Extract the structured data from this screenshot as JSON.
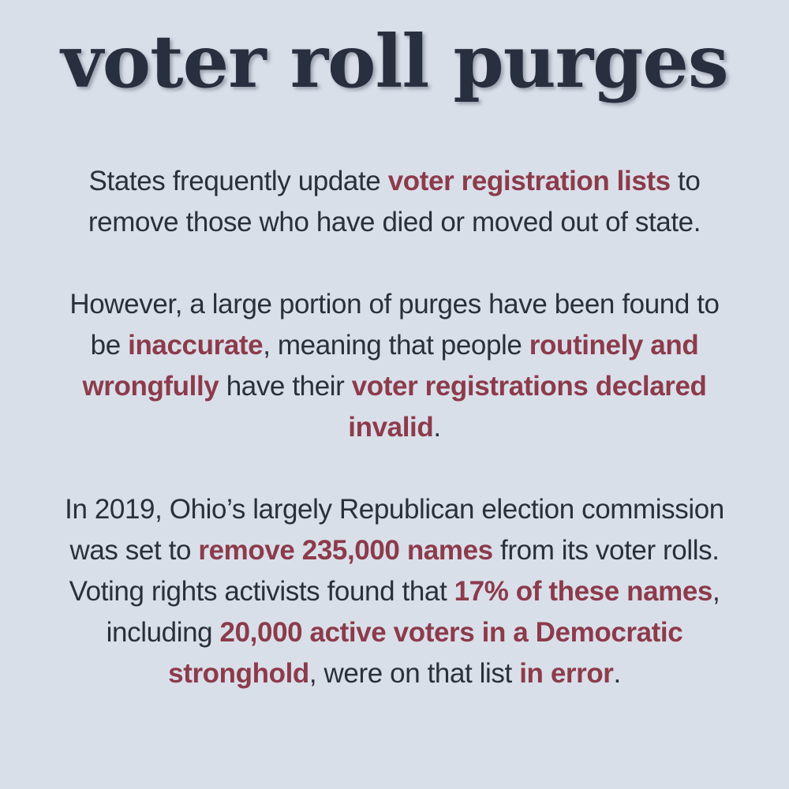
{
  "title": "voter roll purges",
  "colors": {
    "background": "#d9dfe9",
    "title": "#282f3e",
    "text": "#2a2f3a",
    "highlight": "#8c3b4b"
  },
  "paragraphs": [
    {
      "p1_a": "States frequently update ",
      "p1_b": "voter registration lists",
      "p1_c": " to",
      "p1_d": "remove those who have died or moved out of state."
    },
    {
      "p2_a": "However, a large portion of purges have been found to",
      "p2_b": "be ",
      "p2_c": "inaccurate",
      "p2_d": ", meaning that people ",
      "p2_e": "routinely and",
      "p2_f": "wrongfully",
      "p2_g": " have their ",
      "p2_h": "voter registrations declared",
      "p2_i": "invalid",
      "p2_j": "."
    },
    {
      "p3_a": "In 2019, Ohio’s largely Republican election commission",
      "p3_b": "was set to ",
      "p3_c": "remove 235,000 names",
      "p3_d": " from its voter rolls.",
      "p3_e": "Voting rights activists found that ",
      "p3_f": "17% of these names",
      "p3_g": ",",
      "p3_h": "including ",
      "p3_i": "20,000 active voters in a Democratic",
      "p3_j": "stronghold",
      "p3_k": ", were on that list ",
      "p3_l": "in error",
      "p3_m": "."
    }
  ]
}
